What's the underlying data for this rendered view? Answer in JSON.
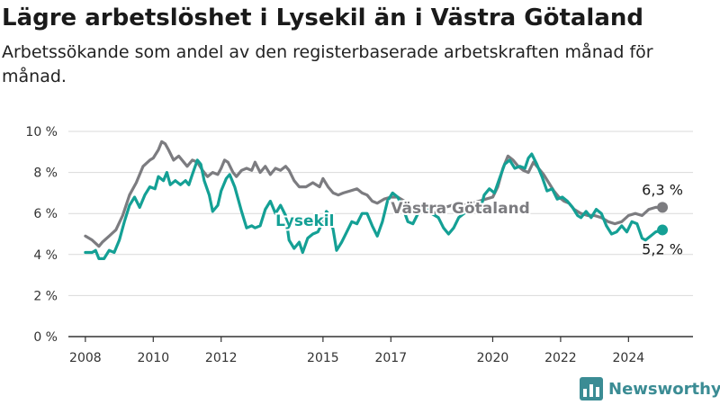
{
  "header": {
    "title": "Lägre arbetslöshet i Lysekil än i Västra Götaland",
    "subtitle": "Arbetssökande som andel av den registerbaserade arbetskraften månad för månad."
  },
  "brand": {
    "name": "Newsworthy",
    "icon": "bar-chart-logo-icon"
  },
  "colors": {
    "lysekil": "#14a095",
    "vastra_gotaland": "#7c7c80",
    "grid": "#d9d9d9",
    "axis": "#333333",
    "brand": "#3b8c94"
  },
  "chart_data": {
    "type": "line",
    "xlabel": "",
    "ylabel": "",
    "xlim": [
      2007.5,
      2025.9
    ],
    "ylim": [
      0,
      10
    ],
    "grid": "horizontal",
    "x_ticks": [
      2008,
      2010,
      2012,
      2015,
      2017,
      2020,
      2022,
      2024
    ],
    "x_tick_labels": [
      "2008",
      "2010",
      "2012",
      "2015",
      "2017",
      "2020",
      "2022",
      "2024"
    ],
    "y_ticks": [
      0,
      2,
      4,
      6,
      8,
      10
    ],
    "y_tick_labels": [
      "0 %",
      "2 %",
      "4 %",
      "6 %",
      "8 %",
      "10 %"
    ],
    "series": [
      {
        "name": "Västra Götaland",
        "color": "#7c7c80",
        "end_label": "6,3 %",
        "points": [
          [
            2008.0,
            4.9
          ],
          [
            2008.2,
            4.7
          ],
          [
            2008.4,
            4.4
          ],
          [
            2008.5,
            4.6
          ],
          [
            2008.7,
            4.9
          ],
          [
            2008.9,
            5.2
          ],
          [
            2009.1,
            5.9
          ],
          [
            2009.3,
            6.9
          ],
          [
            2009.5,
            7.5
          ],
          [
            2009.7,
            8.3
          ],
          [
            2009.9,
            8.6
          ],
          [
            2010.0,
            8.7
          ],
          [
            2010.15,
            9.1
          ],
          [
            2010.25,
            9.5
          ],
          [
            2010.35,
            9.4
          ],
          [
            2010.45,
            9.1
          ],
          [
            2010.6,
            8.6
          ],
          [
            2010.75,
            8.8
          ],
          [
            2010.9,
            8.5
          ],
          [
            2011.0,
            8.3
          ],
          [
            2011.15,
            8.6
          ],
          [
            2011.3,
            8.5
          ],
          [
            2011.45,
            8.1
          ],
          [
            2011.6,
            7.8
          ],
          [
            2011.75,
            8.0
          ],
          [
            2011.9,
            7.9
          ],
          [
            2012.0,
            8.2
          ],
          [
            2012.1,
            8.6
          ],
          [
            2012.2,
            8.5
          ],
          [
            2012.35,
            8.0
          ],
          [
            2012.45,
            7.8
          ],
          [
            2012.6,
            8.1
          ],
          [
            2012.75,
            8.2
          ],
          [
            2012.9,
            8.1
          ],
          [
            2013.0,
            8.5
          ],
          [
            2013.15,
            8.0
          ],
          [
            2013.3,
            8.3
          ],
          [
            2013.45,
            7.9
          ],
          [
            2013.6,
            8.2
          ],
          [
            2013.75,
            8.1
          ],
          [
            2013.9,
            8.3
          ],
          [
            2014.0,
            8.1
          ],
          [
            2014.15,
            7.6
          ],
          [
            2014.3,
            7.3
          ],
          [
            2014.5,
            7.3
          ],
          [
            2014.7,
            7.5
          ],
          [
            2014.9,
            7.3
          ],
          [
            2015.0,
            7.7
          ],
          [
            2015.15,
            7.3
          ],
          [
            2015.3,
            7.0
          ],
          [
            2015.45,
            6.9
          ],
          [
            2015.6,
            7.0
          ],
          [
            2015.8,
            7.1
          ],
          [
            2016.0,
            7.2
          ],
          [
            2016.15,
            7.0
          ],
          [
            2016.3,
            6.9
          ],
          [
            2016.45,
            6.6
          ],
          [
            2016.6,
            6.5
          ],
          [
            2016.8,
            6.7
          ],
          [
            2017.0,
            6.8
          ],
          [
            2017.2,
            6.8
          ],
          [
            2017.4,
            6.6
          ],
          [
            2017.6,
            6.2
          ],
          [
            2017.8,
            6.4
          ],
          [
            2018.0,
            6.3
          ],
          [
            2018.2,
            6.0
          ],
          [
            2018.4,
            6.1
          ],
          [
            2018.6,
            6.3
          ],
          [
            2018.8,
            6.4
          ],
          [
            2019.0,
            6.5
          ],
          [
            2019.2,
            6.4
          ],
          [
            2019.4,
            6.5
          ],
          [
            2019.6,
            6.6
          ],
          [
            2019.8,
            6.7
          ],
          [
            2020.0,
            6.8
          ],
          [
            2020.15,
            7.3
          ],
          [
            2020.3,
            8.2
          ],
          [
            2020.45,
            8.8
          ],
          [
            2020.6,
            8.6
          ],
          [
            2020.75,
            8.3
          ],
          [
            2020.9,
            8.1
          ],
          [
            2021.05,
            8.0
          ],
          [
            2021.2,
            8.5
          ],
          [
            2021.35,
            8.2
          ],
          [
            2021.5,
            7.9
          ],
          [
            2021.65,
            7.5
          ],
          [
            2021.8,
            7.1
          ],
          [
            2021.95,
            6.8
          ],
          [
            2022.1,
            6.6
          ],
          [
            2022.25,
            6.5
          ],
          [
            2022.4,
            6.2
          ],
          [
            2022.6,
            6.0
          ],
          [
            2022.8,
            5.9
          ],
          [
            2023.0,
            5.9
          ],
          [
            2023.2,
            5.8
          ],
          [
            2023.4,
            5.6
          ],
          [
            2023.6,
            5.5
          ],
          [
            2023.8,
            5.6
          ],
          [
            2024.0,
            5.9
          ],
          [
            2024.2,
            6.0
          ],
          [
            2024.4,
            5.9
          ],
          [
            2024.6,
            6.2
          ],
          [
            2024.8,
            6.3
          ],
          [
            2025.0,
            6.3
          ]
        ]
      },
      {
        "name": "Lysekil",
        "color": "#14a095",
        "end_label": "5,2 %",
        "points": [
          [
            2008.0,
            4.1
          ],
          [
            2008.2,
            4.1
          ],
          [
            2008.3,
            4.2
          ],
          [
            2008.4,
            3.8
          ],
          [
            2008.55,
            3.8
          ],
          [
            2008.7,
            4.2
          ],
          [
            2008.85,
            4.1
          ],
          [
            2009.0,
            4.7
          ],
          [
            2009.15,
            5.6
          ],
          [
            2009.3,
            6.4
          ],
          [
            2009.45,
            6.8
          ],
          [
            2009.6,
            6.3
          ],
          [
            2009.75,
            6.9
          ],
          [
            2009.9,
            7.3
          ],
          [
            2010.05,
            7.2
          ],
          [
            2010.15,
            7.8
          ],
          [
            2010.3,
            7.6
          ],
          [
            2010.4,
            8.0
          ],
          [
            2010.5,
            7.4
          ],
          [
            2010.65,
            7.6
          ],
          [
            2010.8,
            7.4
          ],
          [
            2010.95,
            7.6
          ],
          [
            2011.05,
            7.4
          ],
          [
            2011.15,
            7.9
          ],
          [
            2011.3,
            8.6
          ],
          [
            2011.4,
            8.4
          ],
          [
            2011.5,
            7.6
          ],
          [
            2011.65,
            6.9
          ],
          [
            2011.75,
            6.1
          ],
          [
            2011.9,
            6.4
          ],
          [
            2012.0,
            7.1
          ],
          [
            2012.15,
            7.7
          ],
          [
            2012.25,
            7.9
          ],
          [
            2012.4,
            7.3
          ],
          [
            2012.5,
            6.7
          ],
          [
            2012.6,
            6.1
          ],
          [
            2012.75,
            5.3
          ],
          [
            2012.9,
            5.4
          ],
          [
            2013.0,
            5.3
          ],
          [
            2013.15,
            5.4
          ],
          [
            2013.3,
            6.2
          ],
          [
            2013.45,
            6.6
          ],
          [
            2013.6,
            6.0
          ],
          [
            2013.75,
            6.4
          ],
          [
            2013.9,
            5.9
          ],
          [
            2014.0,
            4.7
          ],
          [
            2014.15,
            4.3
          ],
          [
            2014.3,
            4.6
          ],
          [
            2014.4,
            4.1
          ],
          [
            2014.55,
            4.8
          ],
          [
            2014.7,
            5.0
          ],
          [
            2014.85,
            5.1
          ],
          [
            2015.0,
            5.6
          ],
          [
            2015.1,
            6.1
          ],
          [
            2015.2,
            5.9
          ],
          [
            2015.3,
            5.2
          ],
          [
            2015.4,
            4.2
          ],
          [
            2015.55,
            4.6
          ],
          [
            2015.7,
            5.1
          ],
          [
            2015.85,
            5.6
          ],
          [
            2016.0,
            5.5
          ],
          [
            2016.15,
            6.0
          ],
          [
            2016.3,
            6.0
          ],
          [
            2016.45,
            5.4
          ],
          [
            2016.6,
            4.9
          ],
          [
            2016.75,
            5.6
          ],
          [
            2016.9,
            6.6
          ],
          [
            2017.05,
            7.0
          ],
          [
            2017.2,
            6.8
          ],
          [
            2017.35,
            6.3
          ],
          [
            2017.5,
            5.6
          ],
          [
            2017.65,
            5.5
          ],
          [
            2017.8,
            6.0
          ],
          [
            2018.0,
            6.3
          ],
          [
            2018.2,
            6.0
          ],
          [
            2018.4,
            5.8
          ],
          [
            2018.55,
            5.3
          ],
          [
            2018.7,
            5.0
          ],
          [
            2018.85,
            5.3
          ],
          [
            2019.0,
            5.8
          ],
          [
            2019.15,
            6.0
          ],
          [
            2019.3,
            6.1
          ],
          [
            2019.45,
            6.3
          ],
          [
            2019.6,
            6.0
          ],
          [
            2019.75,
            6.9
          ],
          [
            2019.9,
            7.2
          ],
          [
            2020.05,
            7.0
          ],
          [
            2020.2,
            7.7
          ],
          [
            2020.35,
            8.4
          ],
          [
            2020.5,
            8.6
          ],
          [
            2020.65,
            8.2
          ],
          [
            2020.8,
            8.3
          ],
          [
            2020.95,
            8.2
          ],
          [
            2021.05,
            8.7
          ],
          [
            2021.15,
            8.9
          ],
          [
            2021.3,
            8.4
          ],
          [
            2021.45,
            7.8
          ],
          [
            2021.6,
            7.1
          ],
          [
            2021.75,
            7.2
          ],
          [
            2021.9,
            6.7
          ],
          [
            2022.05,
            6.8
          ],
          [
            2022.2,
            6.6
          ],
          [
            2022.35,
            6.3
          ],
          [
            2022.5,
            5.9
          ],
          [
            2022.6,
            5.8
          ],
          [
            2022.75,
            6.1
          ],
          [
            2022.9,
            5.8
          ],
          [
            2023.05,
            6.2
          ],
          [
            2023.2,
            6.0
          ],
          [
            2023.35,
            5.4
          ],
          [
            2023.5,
            5.0
          ],
          [
            2023.65,
            5.1
          ],
          [
            2023.8,
            5.4
          ],
          [
            2023.95,
            5.1
          ],
          [
            2024.1,
            5.6
          ],
          [
            2024.25,
            5.5
          ],
          [
            2024.4,
            4.8
          ],
          [
            2024.5,
            4.7
          ],
          [
            2024.65,
            4.9
          ],
          [
            2024.8,
            5.1
          ],
          [
            2025.0,
            5.2
          ]
        ]
      }
    ],
    "annotations": [
      {
        "text": "Lysekil",
        "series": "Lysekil",
        "x": 2013.6,
        "y": 5.4
      },
      {
        "text": "Västra Götaland",
        "series": "Västra Götaland",
        "x": 2017.0,
        "y": 6.0
      }
    ]
  }
}
